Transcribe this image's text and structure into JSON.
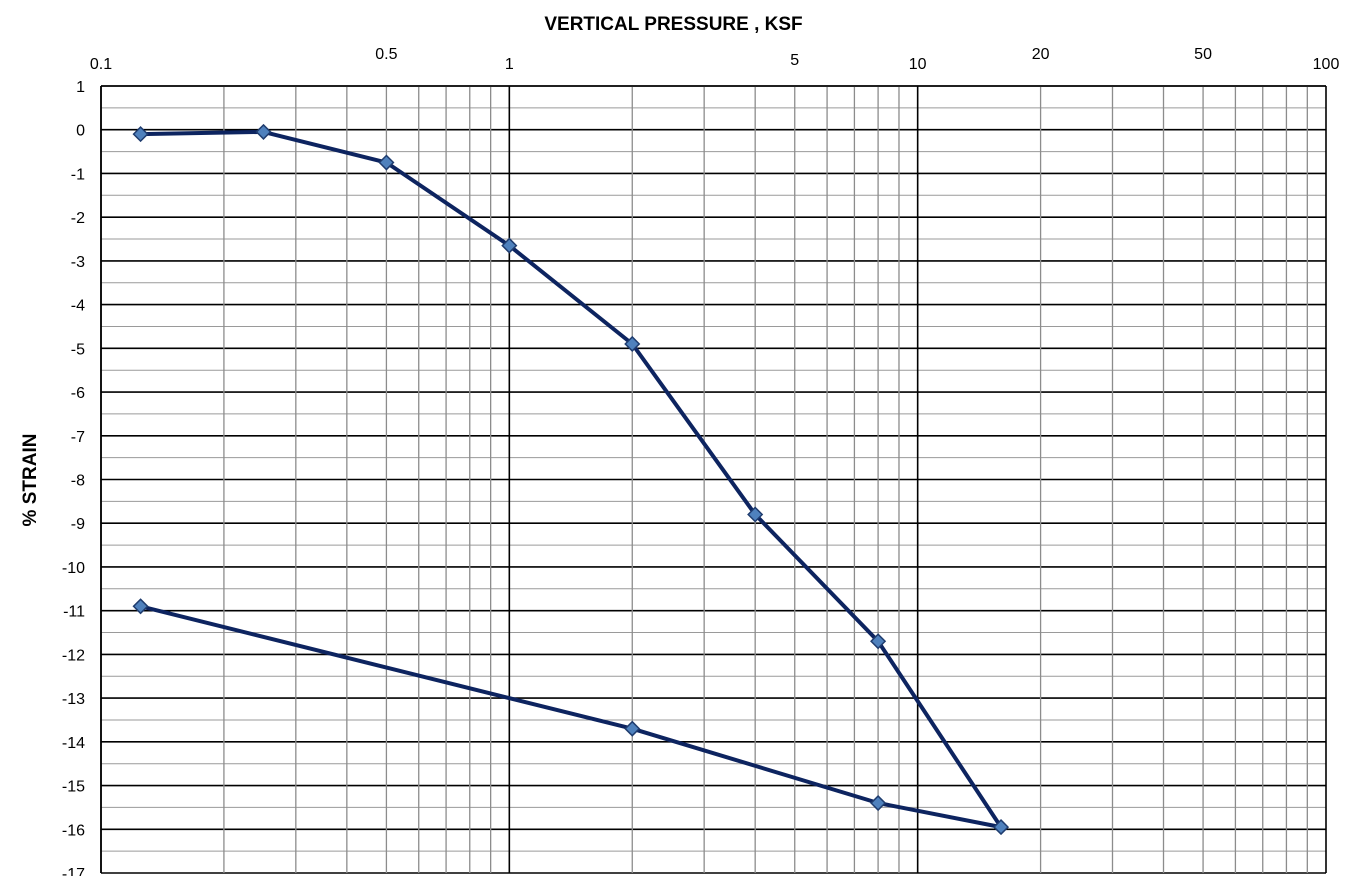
{
  "chart_data": {
    "type": "line",
    "title": "VERTICAL PRESSURE , KSF",
    "xlabel": "VERTICAL PRESSURE , KSF",
    "ylabel": "% STRAIN",
    "x_scale": "log",
    "xlim": [
      0.1,
      100
    ],
    "ylim": [
      -17,
      1
    ],
    "grid": true,
    "x_tick_labels": [
      {
        "value": 0.1,
        "label": "0.1"
      },
      {
        "value": 0.5,
        "label": "0.5"
      },
      {
        "value": 1,
        "label": "1"
      },
      {
        "value": 5,
        "label": "5"
      },
      {
        "value": 10,
        "label": "10"
      },
      {
        "value": 20,
        "label": "20"
      },
      {
        "value": 50,
        "label": "50"
      },
      {
        "value": 100,
        "label": "100"
      }
    ],
    "y_ticks": [
      1,
      0,
      -1,
      -2,
      -3,
      -4,
      -5,
      -6,
      -7,
      -8,
      -9,
      -10,
      -11,
      -12,
      -13,
      -14,
      -15,
      -16,
      -17
    ],
    "series": [
      {
        "x": [
          0.125,
          0.25,
          0.5,
          1,
          2,
          4,
          8,
          16,
          8,
          2,
          0.125
        ],
        "y": [
          -0.1,
          -0.05,
          -0.75,
          -2.65,
          -4.9,
          -8.8,
          -11.7,
          -15.95,
          -15.4,
          -13.7,
          -10.9
        ]
      }
    ],
    "colors": {
      "line": "#0d2460",
      "marker_fill": "#4f81bd",
      "marker_edge": "#1f3c6e"
    }
  }
}
